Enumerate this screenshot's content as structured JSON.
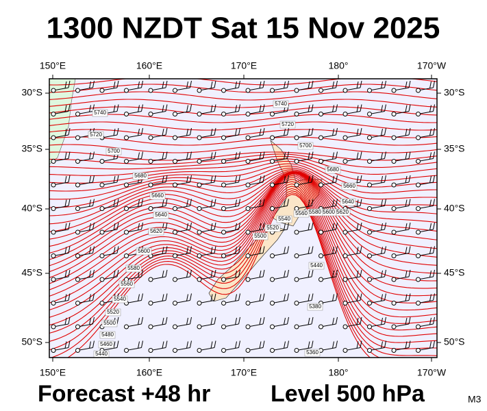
{
  "title": "1300 NZDT Sat 15 Nov 2025",
  "longitudes": [
    "150°E",
    "160°E",
    "170°E",
    "180°",
    "170°W"
  ],
  "latitudes": [
    "30°S",
    "35°S",
    "40°S",
    "45°S",
    "50°S"
  ],
  "contour_labels": [
    "5740",
    "5720",
    "5700",
    "5680",
    "5660",
    "5640",
    "5620",
    "5600",
    "5580",
    "5560",
    "5540",
    "5520",
    "5500",
    "5480",
    "5460",
    "5440",
    "5740",
    "5720",
    "5700",
    "5680",
    "5660",
    "5640",
    "5620",
    "5600",
    "5580",
    "5560",
    "5540",
    "5520",
    "5500",
    "5440",
    "5380",
    "5360"
  ],
  "footer": {
    "forecast": "Forecast +48 hr",
    "level": "Level 500 hPa",
    "code": "M3"
  }
}
